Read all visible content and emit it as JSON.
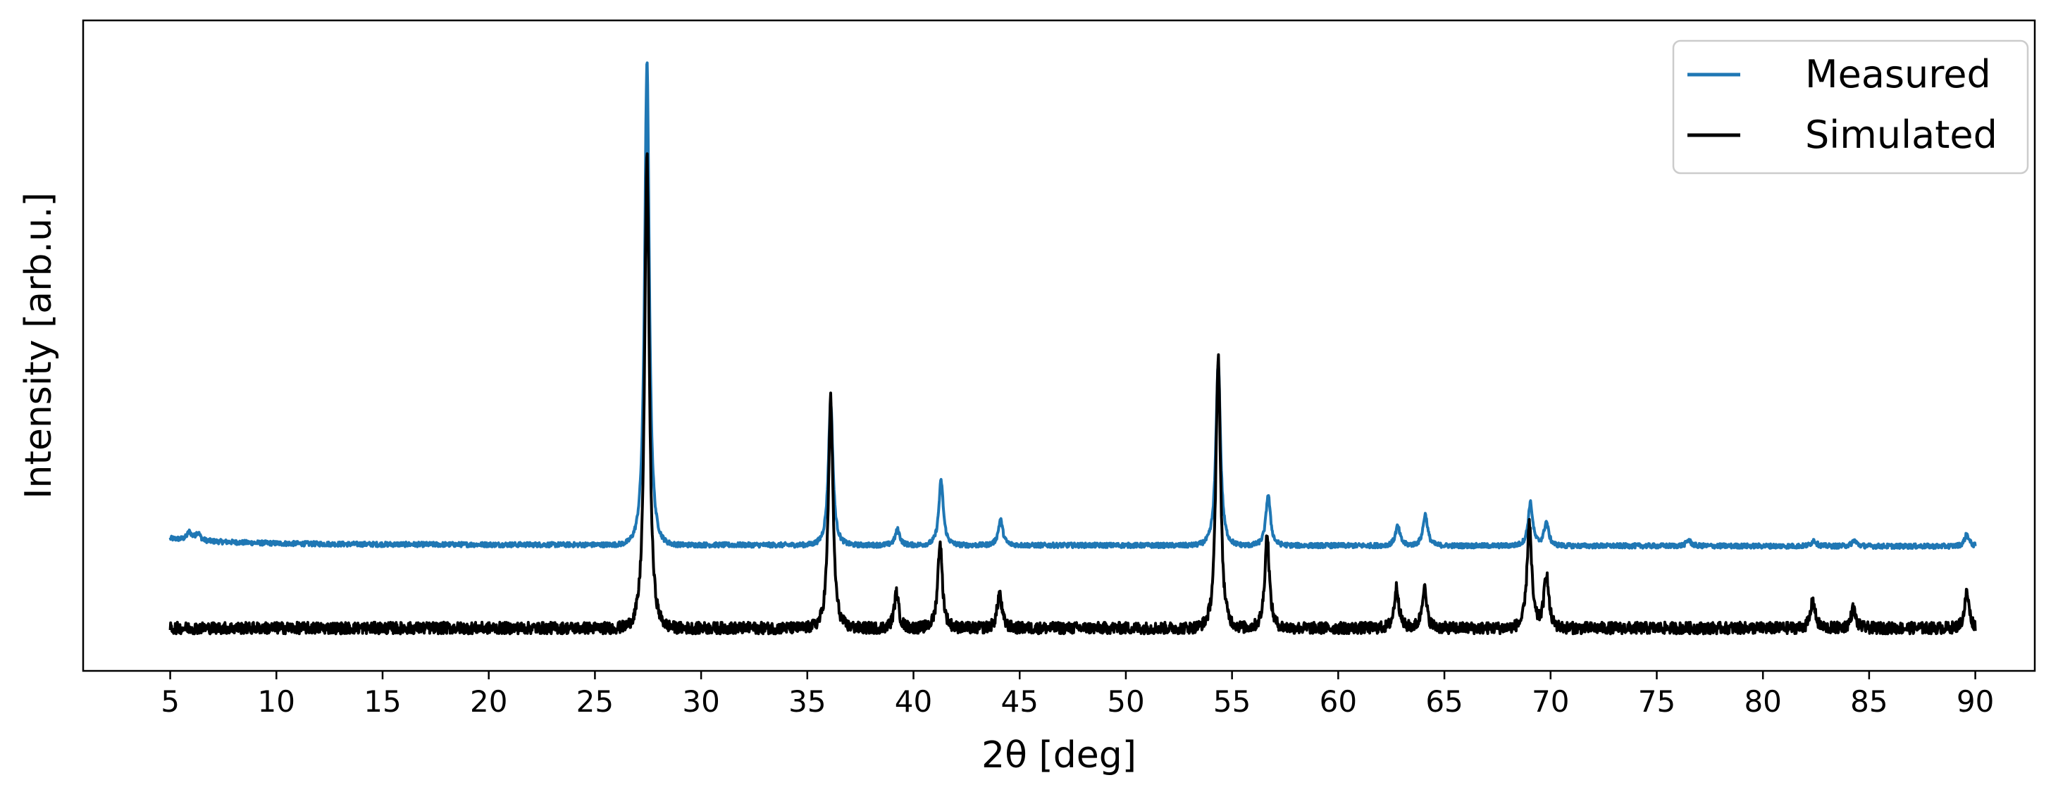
{
  "chart_data": {
    "type": "line",
    "xlabel": "2θ [deg]",
    "ylabel": "Intensity [arb.u.]",
    "xlim": [
      0.9,
      92.8
    ],
    "ylim": [
      -0.22,
      3.12
    ],
    "xticks": [
      5,
      10,
      15,
      20,
      25,
      30,
      35,
      40,
      45,
      50,
      55,
      60,
      65,
      70,
      75,
      80,
      85,
      90
    ],
    "y_ticks_shown": false,
    "grid": false,
    "legend": {
      "position": "top-right",
      "entries": [
        "Measured",
        "Simulated"
      ]
    },
    "colors": {
      "Measured": "#1f77b4",
      "Simulated": "#000000"
    },
    "series": [
      {
        "name": "Measured",
        "color": "#1f77b4",
        "baseline": 0.43,
        "noise": 0.012,
        "peaks": [
          {
            "x": 5.9,
            "h": 0.04
          },
          {
            "x": 6.3,
            "h": 0.04
          },
          {
            "x": 27.45,
            "h": 2.48
          },
          {
            "x": 36.1,
            "h": 0.74
          },
          {
            "x": 39.25,
            "h": 0.08
          },
          {
            "x": 41.3,
            "h": 0.33
          },
          {
            "x": 44.1,
            "h": 0.13
          },
          {
            "x": 54.35,
            "h": 0.94
          },
          {
            "x": 56.7,
            "h": 0.26
          },
          {
            "x": 62.8,
            "h": 0.1
          },
          {
            "x": 64.1,
            "h": 0.16
          },
          {
            "x": 69.05,
            "h": 0.22
          },
          {
            "x": 69.8,
            "h": 0.12
          },
          {
            "x": 76.5,
            "h": 0.03
          },
          {
            "x": 82.4,
            "h": 0.03
          },
          {
            "x": 84.3,
            "h": 0.03
          },
          {
            "x": 89.6,
            "h": 0.06
          }
        ]
      },
      {
        "name": "Simulated",
        "color": "#000000",
        "baseline": 0.0,
        "noise": 0.03,
        "peaks": [
          {
            "x": 27.45,
            "h": 2.42
          },
          {
            "x": 36.1,
            "h": 1.18
          },
          {
            "x": 39.2,
            "h": 0.18
          },
          {
            "x": 41.25,
            "h": 0.44
          },
          {
            "x": 44.05,
            "h": 0.18
          },
          {
            "x": 54.35,
            "h": 1.4
          },
          {
            "x": 56.65,
            "h": 0.48
          },
          {
            "x": 62.75,
            "h": 0.21
          },
          {
            "x": 64.05,
            "h": 0.21
          },
          {
            "x": 69.0,
            "h": 0.54
          },
          {
            "x": 69.8,
            "h": 0.28
          },
          {
            "x": 82.35,
            "h": 0.14
          },
          {
            "x": 84.25,
            "h": 0.1
          },
          {
            "x": 89.6,
            "h": 0.18
          }
        ]
      }
    ]
  }
}
